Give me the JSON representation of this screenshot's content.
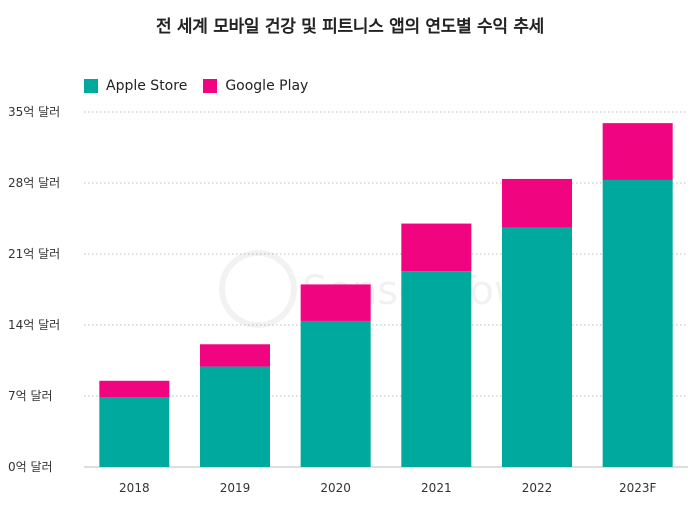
{
  "chart_data": {
    "type": "bar",
    "stacked": true,
    "title": "전 세계 모바일 건강 및 피트니스 앱의 연도별 수익 추세",
    "categories": [
      "2018",
      "2019",
      "2020",
      "2021",
      "2022",
      "2023F"
    ],
    "series": [
      {
        "name": "Apple Store",
        "color": "#00A99D",
        "values": [
          6.9,
          9.9,
          14.4,
          19.3,
          23.6,
          28.3
        ]
      },
      {
        "name": "Google Play",
        "color": "#F0047F",
        "values": [
          1.6,
          2.2,
          3.6,
          4.7,
          4.8,
          5.6
        ]
      }
    ],
    "ylim": [
      0,
      35
    ],
    "y_ticks": [
      {
        "value": 0,
        "label": "0억 달러"
      },
      {
        "value": 7,
        "label": "7억 달러"
      },
      {
        "value": 14,
        "label": "14억 달러"
      },
      {
        "value": 21,
        "label": "21억 달러"
      },
      {
        "value": 28,
        "label": "28억 달러"
      },
      {
        "value": 35,
        "label": "35억 달러"
      }
    ],
    "xlabel": "",
    "ylabel": "",
    "grid": "horizontal dotted",
    "legend_position": "top-left",
    "watermark": "Sensor Tower"
  }
}
